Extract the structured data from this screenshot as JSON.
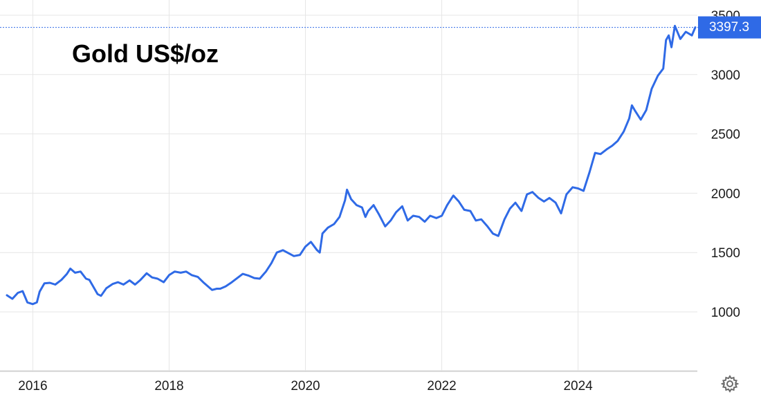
{
  "chart_data": {
    "type": "line",
    "title": "Gold US$/oz",
    "xlabel": "",
    "ylabel": "",
    "x_tick_labels": [
      "2016",
      "2018",
      "2020",
      "2022",
      "2024"
    ],
    "x_tick_values": [
      2016,
      2018,
      2020,
      2022,
      2024
    ],
    "y_tick_labels": [
      "1000",
      "1500",
      "2000",
      "2500",
      "3000",
      "3500"
    ],
    "y_tick_values": [
      1000,
      1500,
      2000,
      2500,
      3000,
      3500
    ],
    "xlim": [
      2015.62,
      2025.75
    ],
    "ylim": [
      500,
      3560
    ],
    "grid": true,
    "legend": "none",
    "last_value": 3397.3,
    "last_value_label": "3397.3",
    "series": [
      {
        "color": "#2f6ae6",
        "points": [
          [
            2015.62,
            1140
          ],
          [
            2015.7,
            1110
          ],
          [
            2015.78,
            1160
          ],
          [
            2015.85,
            1175
          ],
          [
            2015.92,
            1080
          ],
          [
            2016.0,
            1065
          ],
          [
            2016.06,
            1080
          ],
          [
            2016.1,
            1170
          ],
          [
            2016.17,
            1240
          ],
          [
            2016.25,
            1245
          ],
          [
            2016.33,
            1230
          ],
          [
            2016.42,
            1270
          ],
          [
            2016.5,
            1320
          ],
          [
            2016.55,
            1365
          ],
          [
            2016.62,
            1330
          ],
          [
            2016.7,
            1340
          ],
          [
            2016.78,
            1280
          ],
          [
            2016.83,
            1270
          ],
          [
            2016.88,
            1220
          ],
          [
            2016.95,
            1150
          ],
          [
            2017.0,
            1135
          ],
          [
            2017.08,
            1200
          ],
          [
            2017.17,
            1235
          ],
          [
            2017.25,
            1250
          ],
          [
            2017.33,
            1230
          ],
          [
            2017.42,
            1265
          ],
          [
            2017.5,
            1230
          ],
          [
            2017.58,
            1270
          ],
          [
            2017.67,
            1325
          ],
          [
            2017.75,
            1290
          ],
          [
            2017.83,
            1280
          ],
          [
            2017.92,
            1250
          ],
          [
            2018.0,
            1310
          ],
          [
            2018.08,
            1340
          ],
          [
            2018.17,
            1330
          ],
          [
            2018.25,
            1340
          ],
          [
            2018.33,
            1310
          ],
          [
            2018.42,
            1295
          ],
          [
            2018.5,
            1250
          ],
          [
            2018.58,
            1210
          ],
          [
            2018.63,
            1185
          ],
          [
            2018.7,
            1195
          ],
          [
            2018.75,
            1195
          ],
          [
            2018.83,
            1215
          ],
          [
            2018.92,
            1250
          ],
          [
            2019.0,
            1285
          ],
          [
            2019.08,
            1320
          ],
          [
            2019.17,
            1305
          ],
          [
            2019.25,
            1285
          ],
          [
            2019.33,
            1280
          ],
          [
            2019.42,
            1340
          ],
          [
            2019.5,
            1410
          ],
          [
            2019.58,
            1500
          ],
          [
            2019.67,
            1520
          ],
          [
            2019.75,
            1495
          ],
          [
            2019.83,
            1470
          ],
          [
            2019.92,
            1480
          ],
          [
            2020.0,
            1550
          ],
          [
            2020.08,
            1590
          ],
          [
            2020.17,
            1520
          ],
          [
            2020.21,
            1500
          ],
          [
            2020.25,
            1660
          ],
          [
            2020.33,
            1710
          ],
          [
            2020.42,
            1740
          ],
          [
            2020.5,
            1800
          ],
          [
            2020.58,
            1940
          ],
          [
            2020.61,
            2030
          ],
          [
            2020.67,
            1950
          ],
          [
            2020.75,
            1900
          ],
          [
            2020.83,
            1880
          ],
          [
            2020.88,
            1800
          ],
          [
            2020.92,
            1850
          ],
          [
            2021.0,
            1900
          ],
          [
            2021.08,
            1820
          ],
          [
            2021.17,
            1720
          ],
          [
            2021.25,
            1770
          ],
          [
            2021.33,
            1840
          ],
          [
            2021.42,
            1890
          ],
          [
            2021.5,
            1770
          ],
          [
            2021.58,
            1810
          ],
          [
            2021.67,
            1800
          ],
          [
            2021.75,
            1760
          ],
          [
            2021.83,
            1810
          ],
          [
            2021.92,
            1790
          ],
          [
            2022.0,
            1810
          ],
          [
            2022.08,
            1900
          ],
          [
            2022.17,
            1980
          ],
          [
            2022.25,
            1930
          ],
          [
            2022.33,
            1860
          ],
          [
            2022.42,
            1850
          ],
          [
            2022.5,
            1770
          ],
          [
            2022.58,
            1780
          ],
          [
            2022.67,
            1720
          ],
          [
            2022.75,
            1660
          ],
          [
            2022.83,
            1640
          ],
          [
            2022.92,
            1780
          ],
          [
            2023.0,
            1870
          ],
          [
            2023.08,
            1920
          ],
          [
            2023.17,
            1850
          ],
          [
            2023.25,
            1990
          ],
          [
            2023.33,
            2010
          ],
          [
            2023.42,
            1960
          ],
          [
            2023.5,
            1930
          ],
          [
            2023.58,
            1960
          ],
          [
            2023.67,
            1920
          ],
          [
            2023.75,
            1830
          ],
          [
            2023.83,
            1990
          ],
          [
            2023.92,
            2050
          ],
          [
            2024.0,
            2040
          ],
          [
            2024.08,
            2020
          ],
          [
            2024.17,
            2180
          ],
          [
            2024.25,
            2340
          ],
          [
            2024.33,
            2330
          ],
          [
            2024.42,
            2370
          ],
          [
            2024.5,
            2400
          ],
          [
            2024.58,
            2440
          ],
          [
            2024.67,
            2520
          ],
          [
            2024.75,
            2630
          ],
          [
            2024.79,
            2740
          ],
          [
            2024.83,
            2700
          ],
          [
            2024.92,
            2620
          ],
          [
            2025.0,
            2700
          ],
          [
            2025.08,
            2880
          ],
          [
            2025.17,
            2990
          ],
          [
            2025.25,
            3050
          ],
          [
            2025.29,
            3290
          ],
          [
            2025.33,
            3330
          ],
          [
            2025.37,
            3230
          ],
          [
            2025.42,
            3410
          ],
          [
            2025.5,
            3300
          ],
          [
            2025.58,
            3360
          ],
          [
            2025.67,
            3330
          ],
          [
            2025.72,
            3397.3
          ]
        ]
      }
    ]
  }
}
